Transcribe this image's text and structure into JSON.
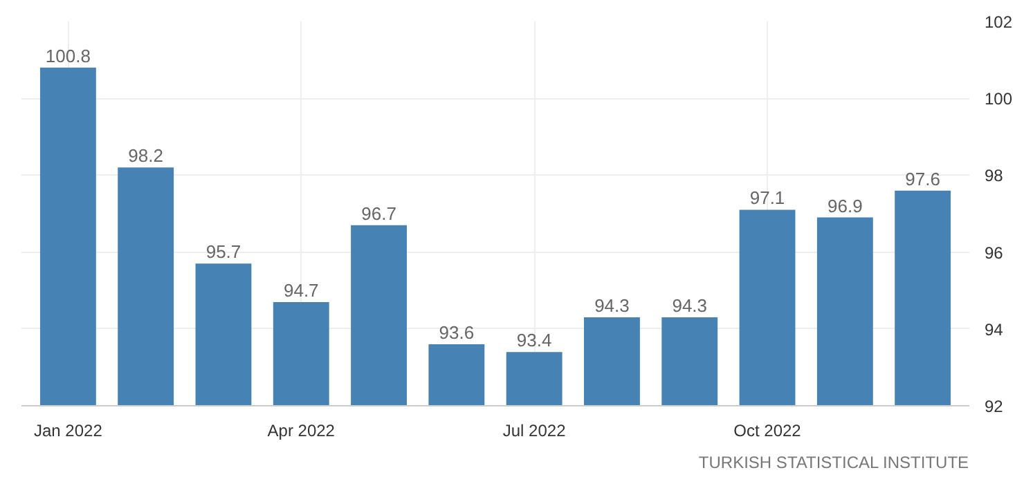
{
  "chart_data": {
    "type": "bar",
    "categories": [
      "Jan 2022",
      null,
      null,
      "Apr 2022",
      null,
      null,
      "Jul 2022",
      null,
      null,
      "Oct 2022",
      null,
      null
    ],
    "values": [
      100.8,
      98.2,
      95.7,
      94.7,
      96.7,
      93.6,
      93.4,
      94.3,
      94.3,
      97.1,
      96.9,
      97.6
    ],
    "color": "#4682b4",
    "ylim": [
      92,
      102
    ],
    "yticks": [
      92,
      94,
      96,
      98,
      100,
      102
    ],
    "grid": true,
    "data_labels": true,
    "annotations": [
      "TURKISH STATISTICAL INSTITUTE"
    ]
  }
}
